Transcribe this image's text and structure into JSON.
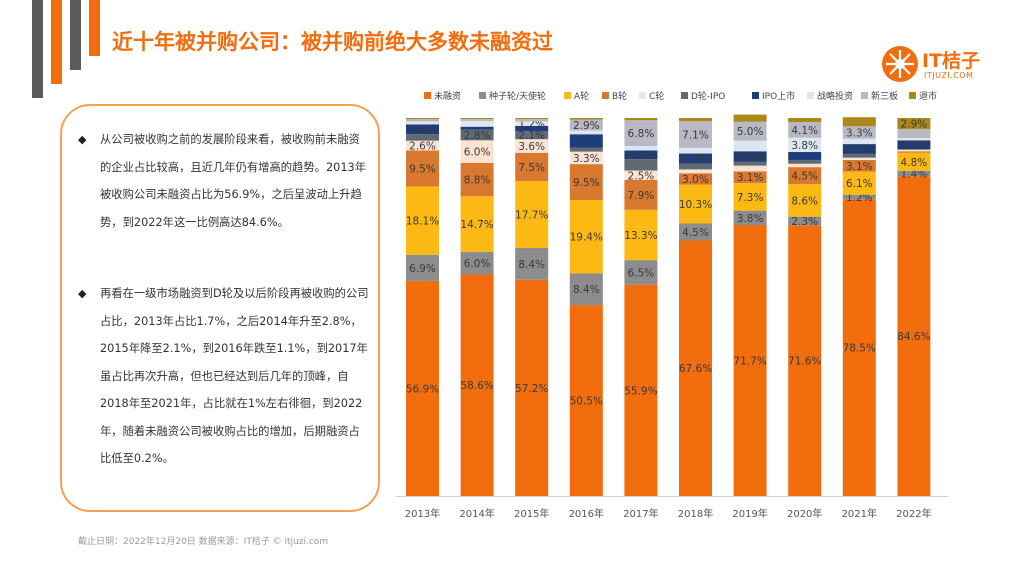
{
  "page": {
    "title": "近十年被并购公司：被并购前绝大多数未融资过",
    "logo_name": "IT桔子",
    "logo_url": "ITJUZI.COM",
    "footer": "截止日期：2022年12月20日   数据来源：IT桔子 © itjuzi.com"
  },
  "text_box": {
    "bullets": [
      "从公司被收购之前的发展阶段来看，被收购前未融资的企业占比较高，且近几年仍有增高的趋势。2013年被收购公司未融资占比为56.9%，之后呈波动上升趋势，到2022年这一比例高达84.6%。",
      "再看在一级市场融资到D轮及以后阶段再被收购的公司占比，2013年占比1.7%，之后2014年升至2.8%，2015年降至2.1%，到2016年跌至1.1%，到2017年虽占比再次升高，但也已经达到后几年的顶峰，自2018年至2021年，占比就在1%左右徘徊，到2022年，随着未融资公司被收购占比的增加，后期融资占比低至0.2%。"
    ],
    "bullet_mark": "◆"
  },
  "colors": {
    "accent": "#f26d0e"
  },
  "icons": {
    "logo": "orange-logo-icon",
    "bullet": "diamond-bullet-icon"
  },
  "chart_data": {
    "type": "bar",
    "stacked": true,
    "percent_stacked": true,
    "categories": [
      "2013年",
      "2014年",
      "2015年",
      "2016年",
      "2017年",
      "2018年",
      "2019年",
      "2020年",
      "2021年",
      "2022年"
    ],
    "legend_position": "top",
    "grid": false,
    "ylim": [
      0,
      100
    ],
    "series": [
      {
        "name": "未融资",
        "color": "#f26d0e",
        "values": [
          56.9,
          58.6,
          57.2,
          50.5,
          55.9,
          67.6,
          71.7,
          71.6,
          78.5,
          84.6
        ],
        "labels": [
          "56.9%",
          "58.6%",
          "57.2%",
          "50.5%",
          "55.9%",
          "67.6%",
          "71.7%",
          "71.6%",
          "78.5%",
          "84.6%"
        ]
      },
      {
        "name": "种子轮/天使轮",
        "color": "#8c8c8c",
        "values": [
          6.9,
          6.0,
          8.4,
          8.4,
          6.5,
          4.5,
          3.8,
          2.3,
          1.2,
          1.4
        ],
        "labels": [
          "6.9%",
          "6.0%",
          "8.4%",
          "8.4%",
          "6.5%",
          "4.5%",
          "3.8%",
          "2.3%",
          "1.2%",
          "1.4%"
        ]
      },
      {
        "name": "A轮",
        "color": "#fdb913",
        "values": [
          18.1,
          14.7,
          17.7,
          19.4,
          13.3,
          10.3,
          7.3,
          8.6,
          6.1,
          4.8
        ],
        "labels": [
          "18.1%",
          "14.7%",
          "17.7%",
          "19.4%",
          "13.3%",
          "10.3%",
          "7.3%",
          "8.6%",
          "6.1%",
          "4.8%"
        ]
      },
      {
        "name": "B轮",
        "color": "#d8792f",
        "values": [
          9.5,
          8.8,
          7.5,
          9.5,
          7.9,
          3.0,
          3.1,
          4.5,
          3.1,
          0.4
        ],
        "labels": [
          "9.5%",
          "8.8%",
          "7.5%",
          "9.5%",
          "7.9%",
          "3.0%",
          "3.1%",
          "4.5%",
          "3.1%",
          ""
        ]
      },
      {
        "name": "C轮",
        "color": "#fbe3d3",
        "values": [
          2.6,
          6.0,
          3.6,
          3.3,
          2.5,
          1.0,
          1.5,
          0.9,
          0.6,
          0.4
        ],
        "labels": [
          "2.6%",
          "6.0%",
          "3.6%",
          "3.3%",
          "2.5%",
          "",
          "",
          "",
          "",
          ""
        ]
      },
      {
        "name": "D轮-IPO",
        "color": "#5f6a72",
        "values": [
          1.7,
          2.8,
          2.1,
          1.1,
          3.0,
          1.5,
          1.0,
          1.0,
          1.0,
          0.2
        ],
        "labels": [
          "",
          "2.8%",
          "2.1%",
          "",
          "",
          "",
          "",
          "",
          "",
          ""
        ]
      },
      {
        "name": "IPO上市",
        "color": "#1f3d79",
        "values": [
          2.6,
          0.8,
          1.4,
          3.5,
          2.3,
          2.7,
          2.8,
          2.1,
          2.6,
          2.3
        ],
        "labels": [
          "2.6%",
          "",
          "",
          "",
          "2.3%",
          "2.7%",
          "2.8%",
          "",
          "2.6%",
          "2.3%"
        ]
      },
      {
        "name": "战略投资",
        "color": "#dde6f3",
        "values": [
          0.8,
          1.5,
          1.2,
          1.0,
          1.2,
          1.5,
          2.8,
          3.8,
          1.4,
          0.6
        ],
        "labels": [
          "",
          "",
          "1.2%",
          "",
          "",
          "",
          "",
          "3.8%",
          "",
          ""
        ]
      },
      {
        "name": "新三板",
        "color": "#b9b9c3",
        "values": [
          0.6,
          0.5,
          0.6,
          2.9,
          6.8,
          7.1,
          5.0,
          4.1,
          3.3,
          2.4
        ],
        "labels": [
          "",
          "",
          "",
          "2.9%",
          "6.8%",
          "7.1%",
          "5.0%",
          "4.1%",
          "3.3%",
          ""
        ]
      },
      {
        "name": "退市",
        "color": "#a8891a",
        "values": [
          0.3,
          0.3,
          0.3,
          0.4,
          0.6,
          0.8,
          1.9,
          1.1,
          2.4,
          2.9
        ],
        "labels": [
          "",
          "",
          "",
          "",
          "",
          "",
          "",
          "",
          "",
          "2.9%"
        ]
      }
    ]
  }
}
